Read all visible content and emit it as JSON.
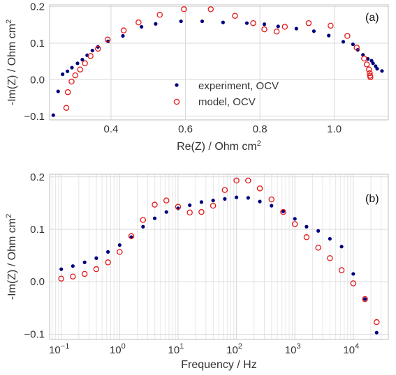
{
  "colors": {
    "experiment": "#00007f",
    "model": "#e41a1c",
    "grid": "#d9d9d9",
    "frame": "#bfbfbf",
    "text": "#333333"
  },
  "chart_data": [
    {
      "type": "scatter",
      "panel_label": "(a)",
      "xlabel_base": "Re(Z) / Ohm cm",
      "xlabel_sup": "2",
      "ylabel_base": "-Im(Z) / Ohm cm",
      "ylabel_sup": "2",
      "xlim": [
        0.235,
        1.145
      ],
      "ylim": [
        -0.11,
        0.205
      ],
      "xticks": [
        0.4,
        0.6,
        0.8,
        1.0
      ],
      "xtick_labels": [
        "0.4",
        "0.6",
        "0.8",
        "1.0"
      ],
      "yticks": [
        -0.1,
        0.0,
        0.1,
        0.2
      ],
      "ytick_labels": [
        "−0.1",
        "0.0",
        "0.1",
        "0.2"
      ],
      "grid": true,
      "legend": {
        "placement": "lower-center",
        "entries": [
          "experiment, OCV",
          "model, OCV"
        ]
      },
      "series": [
        {
          "name": "experiment, OCV",
          "marker": "dot",
          "x": [
            0.245,
            0.258,
            0.27,
            0.283,
            0.295,
            0.31,
            0.323,
            0.336,
            0.35,
            0.365,
            0.392,
            0.432,
            0.482,
            0.52,
            0.588,
            0.645,
            0.701,
            0.765,
            0.812,
            0.849,
            0.898,
            0.945,
            0.985,
            1.024,
            1.05,
            1.063,
            1.077,
            1.09,
            1.1,
            1.104,
            1.111,
            1.115,
            1.128
          ],
          "y": [
            -0.097,
            -0.032,
            0.015,
            0.023,
            0.033,
            0.045,
            0.055,
            0.067,
            0.08,
            0.09,
            0.105,
            0.12,
            0.145,
            0.153,
            0.16,
            0.16,
            0.157,
            0.155,
            0.152,
            0.146,
            0.14,
            0.133,
            0.121,
            0.104,
            0.097,
            0.082,
            0.068,
            0.057,
            0.052,
            0.045,
            0.037,
            0.03,
            0.024
          ]
        },
        {
          "name": "model, OCV",
          "marker": "open-circle",
          "x": [
            0.28,
            0.284,
            0.294,
            0.304,
            0.317,
            0.33,
            0.345,
            0.365,
            0.391,
            0.434,
            0.474,
            0.531,
            0.596,
            0.668,
            0.733,
            0.782,
            0.812,
            0.845,
            0.867,
            0.931,
            0.99,
            1.035,
            1.06,
            1.08,
            1.087,
            1.093,
            1.095,
            1.096,
            1.097
          ],
          "y": [
            -0.077,
            -0.034,
            -0.005,
            0.012,
            0.028,
            0.045,
            0.065,
            0.085,
            0.11,
            0.135,
            0.157,
            0.178,
            0.193,
            0.193,
            0.175,
            0.155,
            0.138,
            0.132,
            0.145,
            0.155,
            0.148,
            0.12,
            0.088,
            0.058,
            0.042,
            0.028,
            0.018,
            0.011,
            0.007
          ]
        }
      ]
    },
    {
      "type": "scatter",
      "panel_label": "(b)",
      "xlabel": "Frequency / Hz",
      "ylabel_base": "-Im(Z) / Ohm cm",
      "ylabel_sup": "2",
      "xscale": "log",
      "xlim_log10": [
        -1.2,
        4.6
      ],
      "ylim": [
        -0.11,
        0.205
      ],
      "xticks_log10": [
        -1,
        0,
        1,
        2,
        3,
        4
      ],
      "xtick_labels": [
        {
          "base": "10",
          "exp": "−1"
        },
        {
          "base": "10",
          "exp": "0"
        },
        {
          "base": "10",
          "exp": "1"
        },
        {
          "base": "10",
          "exp": "2"
        },
        {
          "base": "10",
          "exp": "3"
        },
        {
          "base": "10",
          "exp": "4"
        }
      ],
      "yticks": [
        -0.1,
        0.0,
        0.1,
        0.2
      ],
      "ytick_labels": [
        "−0.1",
        "0.0",
        "0.1",
        "0.2"
      ],
      "grid": true,
      "series": [
        {
          "name": "experiment, OCV",
          "marker": "dot",
          "x": [
            0.1,
            0.158,
            0.251,
            0.398,
            0.631,
            1.0,
            1.585,
            2.512,
            3.981,
            6.31,
            10.0,
            15.85,
            25.12,
            39.81,
            63.1,
            100.0,
            158.5,
            251.2,
            398.1,
            631.0,
            1000.0,
            1585.0,
            2512.0,
            3981.0,
            6310.0,
            10000.0,
            15850.0,
            25120.0
          ],
          "y": [
            0.024,
            0.03,
            0.037,
            0.045,
            0.057,
            0.07,
            0.085,
            0.105,
            0.121,
            0.133,
            0.14,
            0.146,
            0.152,
            0.155,
            0.158,
            0.161,
            0.16,
            0.153,
            0.145,
            0.134,
            0.12,
            0.105,
            0.097,
            0.082,
            0.067,
            0.015,
            -0.033,
            -0.097
          ]
        },
        {
          "name": "model, OCV",
          "marker": "open-circle",
          "x": [
            0.1,
            0.158,
            0.251,
            0.398,
            0.631,
            1.0,
            1.585,
            2.512,
            3.981,
            6.31,
            10.0,
            15.85,
            25.12,
            39.81,
            63.1,
            100.0,
            158.5,
            251.2,
            398.1,
            631.0,
            1000.0,
            1585.0,
            2512.0,
            3981.0,
            6310.0,
            10000.0,
            15850.0,
            25120.0
          ],
          "y": [
            0.006,
            0.01,
            0.015,
            0.024,
            0.037,
            0.057,
            0.087,
            0.118,
            0.147,
            0.155,
            0.143,
            0.132,
            0.133,
            0.145,
            0.175,
            0.193,
            0.193,
            0.178,
            0.157,
            0.133,
            0.11,
            0.085,
            0.065,
            0.045,
            0.022,
            -0.003,
            -0.033,
            -0.077
          ]
        }
      ]
    }
  ]
}
